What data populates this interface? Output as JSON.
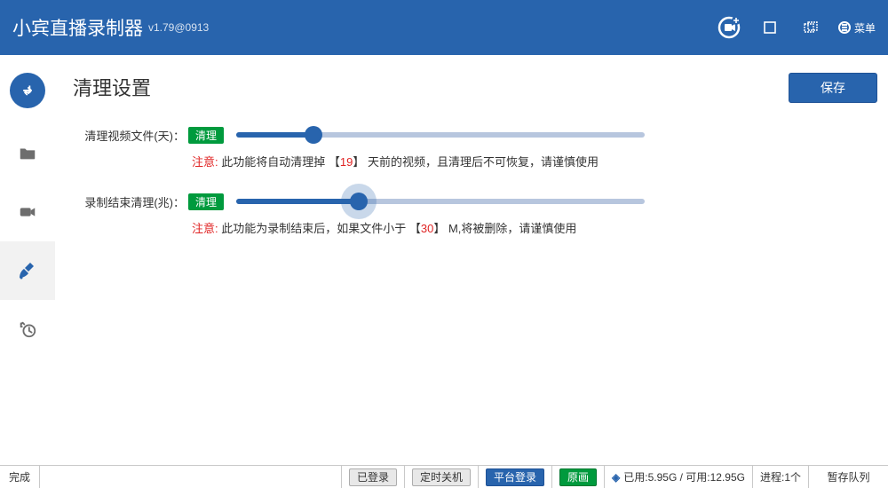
{
  "header": {
    "title": "小宾直播录制器",
    "version": "v1.79@0913",
    "menu_label": "菜单"
  },
  "page": {
    "title": "清理设置",
    "save_label": "保存"
  },
  "rows": [
    {
      "label": "清理视频文件(天)：",
      "badge": "清理",
      "slider_percent": 19,
      "has_halo": false,
      "note_prefix": "注意:",
      "note_a": " 此功能将自动清理掉 【",
      "note_value": "19",
      "note_b": "】 天前的视频，且清理后不可恢复，请谨慎使用"
    },
    {
      "label": "录制结束清理(兆)：",
      "badge": "清理",
      "slider_percent": 30,
      "has_halo": true,
      "note_prefix": "注意:",
      "note_a": " 此功能为录制结束后，如果文件小于 【",
      "note_value": "30",
      "note_b": "】 M,将被删除，请谨慎使用"
    }
  ],
  "statusbar": {
    "status": "完成",
    "logged": "已登录",
    "timer_off": "定时关机",
    "platform_login": "平台登录",
    "quality": "原画",
    "disk": "已用:5.95G / 可用:12.95G",
    "process": "进程:1个",
    "queue": "暂存队列"
  },
  "colors": {
    "primary": "#2864ad",
    "green": "#009a3d",
    "red": "#e02424",
    "track": "#b7c6de"
  }
}
